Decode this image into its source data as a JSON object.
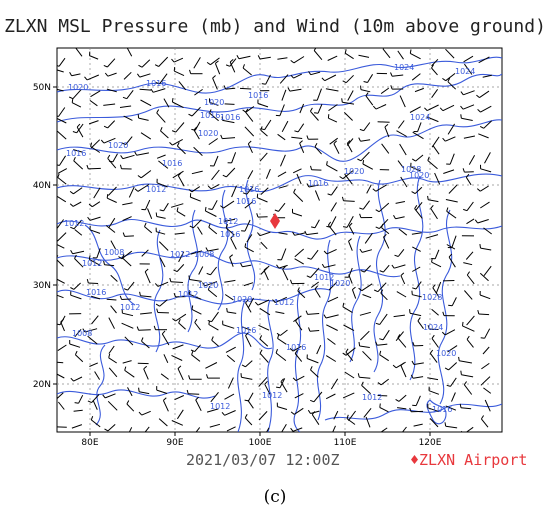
{
  "title": "ZLXN MSL Pressure (mb) and Wind (10m above ground)",
  "valid_time": "2021/03/07 12:00Z",
  "legend": {
    "marker_color": "#e8383d",
    "marker_label": "♦ZLXN Airport"
  },
  "caption": "(c)",
  "axes": {
    "lat_ticks": [
      "50N",
      "40N",
      "30N",
      "20N"
    ],
    "lon_ticks": [
      "80E",
      "90E",
      "100E",
      "110E",
      "120E"
    ]
  },
  "isobar_labels": [
    "1020",
    "1016",
    "1020",
    "1016",
    "1020",
    "1020",
    "1024",
    "1016",
    "1016",
    "1016",
    "1020",
    "1016",
    "1012",
    "1016",
    "1012",
    "1016",
    "1020",
    "1012",
    "1016",
    "1012",
    "1028",
    "1008",
    "1008",
    "1012",
    "1020",
    "1028",
    "1016",
    "1012",
    "1012",
    "1012",
    "1020",
    "1012",
    "1020",
    "1024",
    "1008",
    "1024",
    "1024",
    "1016",
    "1016",
    "1020",
    "1012",
    "1012",
    "1016",
    "1012",
    "1016"
  ],
  "colors": {
    "isobar": "#3b5bdb",
    "wind": "#000000",
    "grid": "#888888",
    "airport": "#e8383d"
  }
}
